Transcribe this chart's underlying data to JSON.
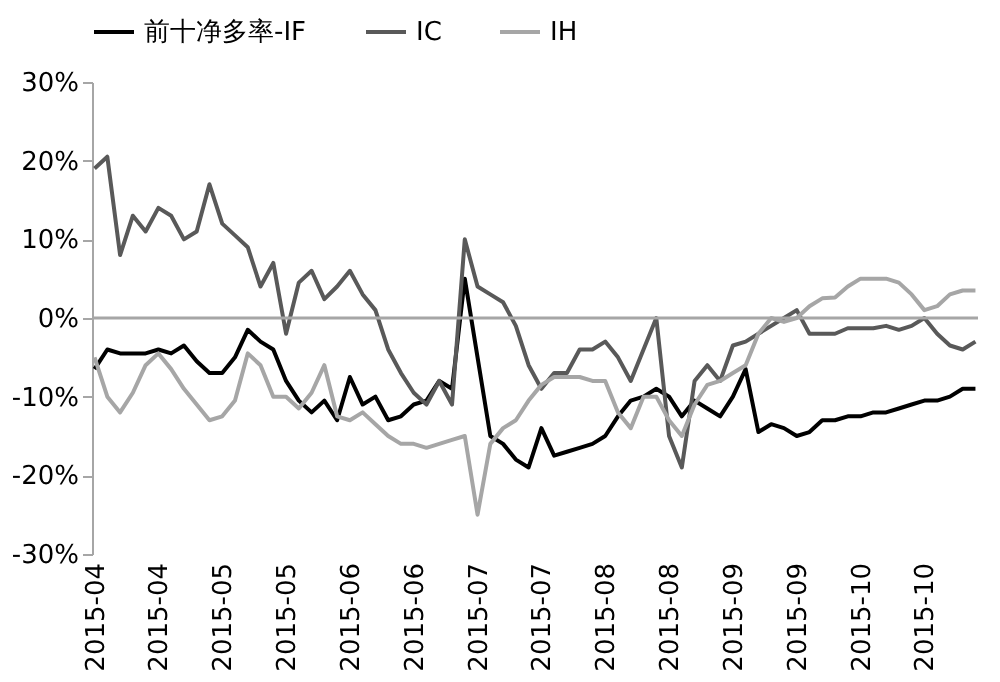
{
  "chart_data": {
    "type": "line",
    "categories": [
      "2015-04",
      null,
      null,
      null,
      null,
      "2015-04",
      null,
      null,
      null,
      null,
      "2015-05",
      null,
      null,
      null,
      null,
      "2015-05",
      null,
      null,
      null,
      null,
      "2015-06",
      null,
      null,
      null,
      null,
      "2015-06",
      null,
      null,
      null,
      null,
      "2015-07",
      null,
      null,
      null,
      null,
      "2015-07",
      null,
      null,
      null,
      null,
      "2015-08",
      null,
      null,
      null,
      null,
      "2015-08",
      null,
      null,
      null,
      null,
      "2015-09",
      null,
      null,
      null,
      null,
      "2015-09",
      null,
      null,
      null,
      null,
      "2015-10",
      null,
      null,
      null,
      null,
      "2015-10",
      null,
      null,
      null,
      null
    ],
    "series": [
      {
        "name": "前十净多率-IF",
        "color": "#000000",
        "values": [
          -6.5,
          -4,
          -4.5,
          -4.5,
          -4.5,
          -4,
          -4.5,
          -3.5,
          -5.5,
          -7,
          -7,
          -5,
          -1.5,
          -3,
          -4,
          -8,
          -10.5,
          -12,
          -10.5,
          -13,
          -7.5,
          -11,
          -10,
          -13,
          -12.5,
          -11,
          -10.5,
          -8,
          -9,
          5,
          -5,
          -15,
          -16,
          -18,
          -19,
          -14,
          -17.5,
          -17,
          -16.5,
          -16,
          -15,
          -12.5,
          -10.5,
          -10,
          -9,
          -10,
          -12.5,
          -10.5,
          -11.5,
          -12.5,
          -10,
          -6.5,
          -14.5,
          -13.5,
          -14,
          -15,
          -14.5,
          -13,
          -13,
          -12.5,
          -12.5,
          -12,
          -12,
          -11.5,
          -11,
          -10.5,
          -10.5,
          -10,
          -9,
          -9
        ]
      },
      {
        "name": "IC",
        "color": "#595959",
        "values": [
          19,
          20.5,
          8,
          13,
          11,
          14,
          13,
          10,
          11,
          17,
          12,
          10.5,
          9,
          4,
          7,
          -2,
          4.5,
          6,
          2.4,
          4,
          6,
          3,
          1,
          -4,
          -7,
          -9.5,
          -11,
          -8,
          -11,
          10,
          4,
          3,
          2,
          -1,
          -6,
          -9,
          -7,
          -7,
          -4,
          -4,
          -3,
          -5,
          -8,
          -4,
          0,
          -15,
          -19,
          -8,
          -6,
          -8,
          -3.5,
          -3,
          -2,
          -1,
          0,
          1,
          -2,
          -2,
          -2,
          -1.3,
          -1.3,
          -1.3,
          -1,
          -1.5,
          -1,
          0,
          -2,
          -3.5,
          -4,
          -3
        ]
      },
      {
        "name": "IH",
        "color": "#a6a6a6",
        "values": [
          -5,
          -10,
          -12,
          -9.5,
          -6,
          -4.5,
          -6.5,
          -9,
          -11,
          -13,
          -12.5,
          -10.5,
          -4.5,
          -6,
          -10,
          -10,
          -11.5,
          -9.5,
          -6,
          -12.5,
          -13,
          -12,
          -13.5,
          -15,
          -16,
          -16,
          -16.5,
          -16,
          -15.5,
          -15,
          -25,
          -16,
          -14,
          -13,
          -10.5,
          -8.5,
          -7.5,
          -7.5,
          -7.5,
          -8,
          -8,
          -12,
          -14,
          -10,
          -10,
          -13,
          -15,
          -11,
          -8.5,
          -8,
          -7,
          -6,
          -2,
          0,
          -0.5,
          0,
          1.5,
          2.5,
          2.6,
          4,
          5,
          5,
          5,
          4.5,
          3,
          1,
          1.5,
          3,
          3.5,
          3.5
        ]
      }
    ],
    "ylim": [
      -30,
      30
    ],
    "yticks": [
      {
        "value": -30,
        "label": "-30%"
      },
      {
        "value": -20,
        "label": "-20%"
      },
      {
        "value": -10,
        "label": "-10%"
      },
      {
        "value": 0,
        "label": "0%"
      },
      {
        "value": 10,
        "label": "10%"
      },
      {
        "value": 20,
        "label": "20%"
      },
      {
        "value": 30,
        "label": "30%"
      }
    ],
    "ref_lines": [
      {
        "axis": "y",
        "value": 0,
        "label": null,
        "color": "#a6a6a6"
      }
    ],
    "grid": false,
    "legend": "top",
    "marker": "none",
    "line_style": "solid"
  }
}
